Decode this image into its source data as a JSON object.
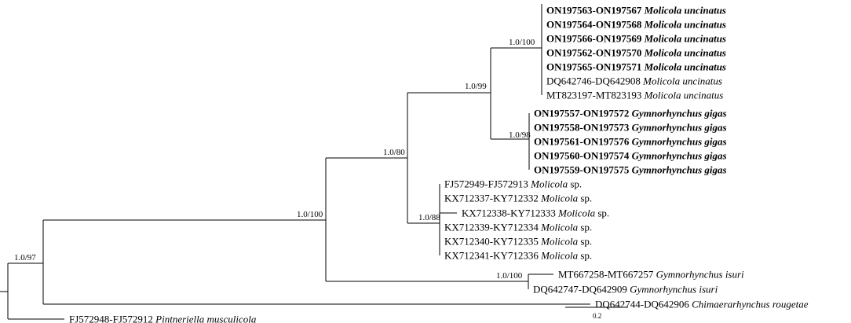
{
  "tree": {
    "tips": [
      {
        "id": "u1",
        "acc": "ON197563-ON197567 ",
        "species": "Molicola uncinatus",
        "suffix": "",
        "bold": true
      },
      {
        "id": "u2",
        "acc": "ON197564-ON197568 ",
        "species": "Molicola uncinatus",
        "suffix": "",
        "bold": true
      },
      {
        "id": "u3",
        "acc": "ON197566-ON197569 ",
        "species": "Molicola uncinatus",
        "suffix": "",
        "bold": true
      },
      {
        "id": "u4",
        "acc": "ON197562-ON197570 ",
        "species": "Molicola uncinatus",
        "suffix": "",
        "bold": true
      },
      {
        "id": "u5",
        "acc": "ON197565-ON197571 ",
        "species": "Molicola uncinatus",
        "suffix": "",
        "bold": true
      },
      {
        "id": "u6",
        "acc": "DQ642746-DQ642908 ",
        "species": "Molicola uncinatus",
        "suffix": "",
        "bold": false
      },
      {
        "id": "u7",
        "acc": "MT823197-MT823193 ",
        "species": "Molicola uncinatus",
        "suffix": "",
        "bold": false
      },
      {
        "id": "g1",
        "acc": "ON197557-ON197572 ",
        "species": "Gymnorhynchus gigas",
        "suffix": "",
        "bold": true
      },
      {
        "id": "g2",
        "acc": "ON197558-ON197573 ",
        "species": "Gymnorhynchus gigas",
        "suffix": "",
        "bold": true
      },
      {
        "id": "g3",
        "acc": "ON197561-ON197576 ",
        "species": "Gymnorhynchus gigas",
        "suffix": "",
        "bold": true
      },
      {
        "id": "g4",
        "acc": "ON197560-ON197574 ",
        "species": "Gymnorhynchus gigas",
        "suffix": "",
        "bold": true
      },
      {
        "id": "g5",
        "acc": "ON197559-ON197575 ",
        "species": "Gymnorhynchus gigas",
        "suffix": "",
        "bold": true
      },
      {
        "id": "m1",
        "acc": "FJ572949-FJ572913 ",
        "species": "Molicola",
        "suffix": " sp.",
        "bold": false
      },
      {
        "id": "m2",
        "acc": "KX712337-KY712332 ",
        "species": "Molicola",
        "suffix": " sp.",
        "bold": false
      },
      {
        "id": "m3",
        "acc": "KX712338-KY712333 ",
        "species": "Molicola",
        "suffix": " sp.",
        "bold": false
      },
      {
        "id": "m4",
        "acc": "KX712339-KY712334 ",
        "species": "Molicola",
        "suffix": " sp.",
        "bold": false
      },
      {
        "id": "m5",
        "acc": "KX712340-KY712335 ",
        "species": "Molicola",
        "suffix": " sp.",
        "bold": false
      },
      {
        "id": "m6",
        "acc": "KX712341-KY712336 ",
        "species": "Molicola",
        "suffix": " sp.",
        "bold": false
      },
      {
        "id": "i1",
        "acc": "MT667258-MT667257 ",
        "species": "Gymnorhynchus isuri",
        "suffix": "",
        "bold": false
      },
      {
        "id": "i2",
        "acc": "DQ642747-DQ642909 ",
        "species": "Gymnorhynchus isuri",
        "suffix": "",
        "bold": false
      },
      {
        "id": "c1",
        "acc": "DQ642744-DQ642906 ",
        "species": "Chimaerarhynchus rougetae",
        "suffix": "",
        "bold": false
      },
      {
        "id": "p1",
        "acc": "FJ572948-FJ572912 ",
        "species": "Pintneriella musculicola",
        "suffix": "",
        "bold": false
      }
    ],
    "supports": [
      {
        "node": "uncinatus-clade",
        "value": "1.0/100"
      },
      {
        "node": "molicola-gymnorhynchus-clade",
        "value": "1.0/99"
      },
      {
        "node": "gigas-clade",
        "value": "1.0/98"
      },
      {
        "node": "core-clade",
        "value": "1.0/80"
      },
      {
        "node": "molicola-sp-clade",
        "value": "1.0/88"
      },
      {
        "node": "ingroup-clade",
        "value": "1.0/100"
      },
      {
        "node": "isuri-clade",
        "value": "1.0/100"
      },
      {
        "node": "root-clade",
        "value": "1.0/97"
      }
    ],
    "scale_bar": {
      "label": "0.2"
    }
  }
}
